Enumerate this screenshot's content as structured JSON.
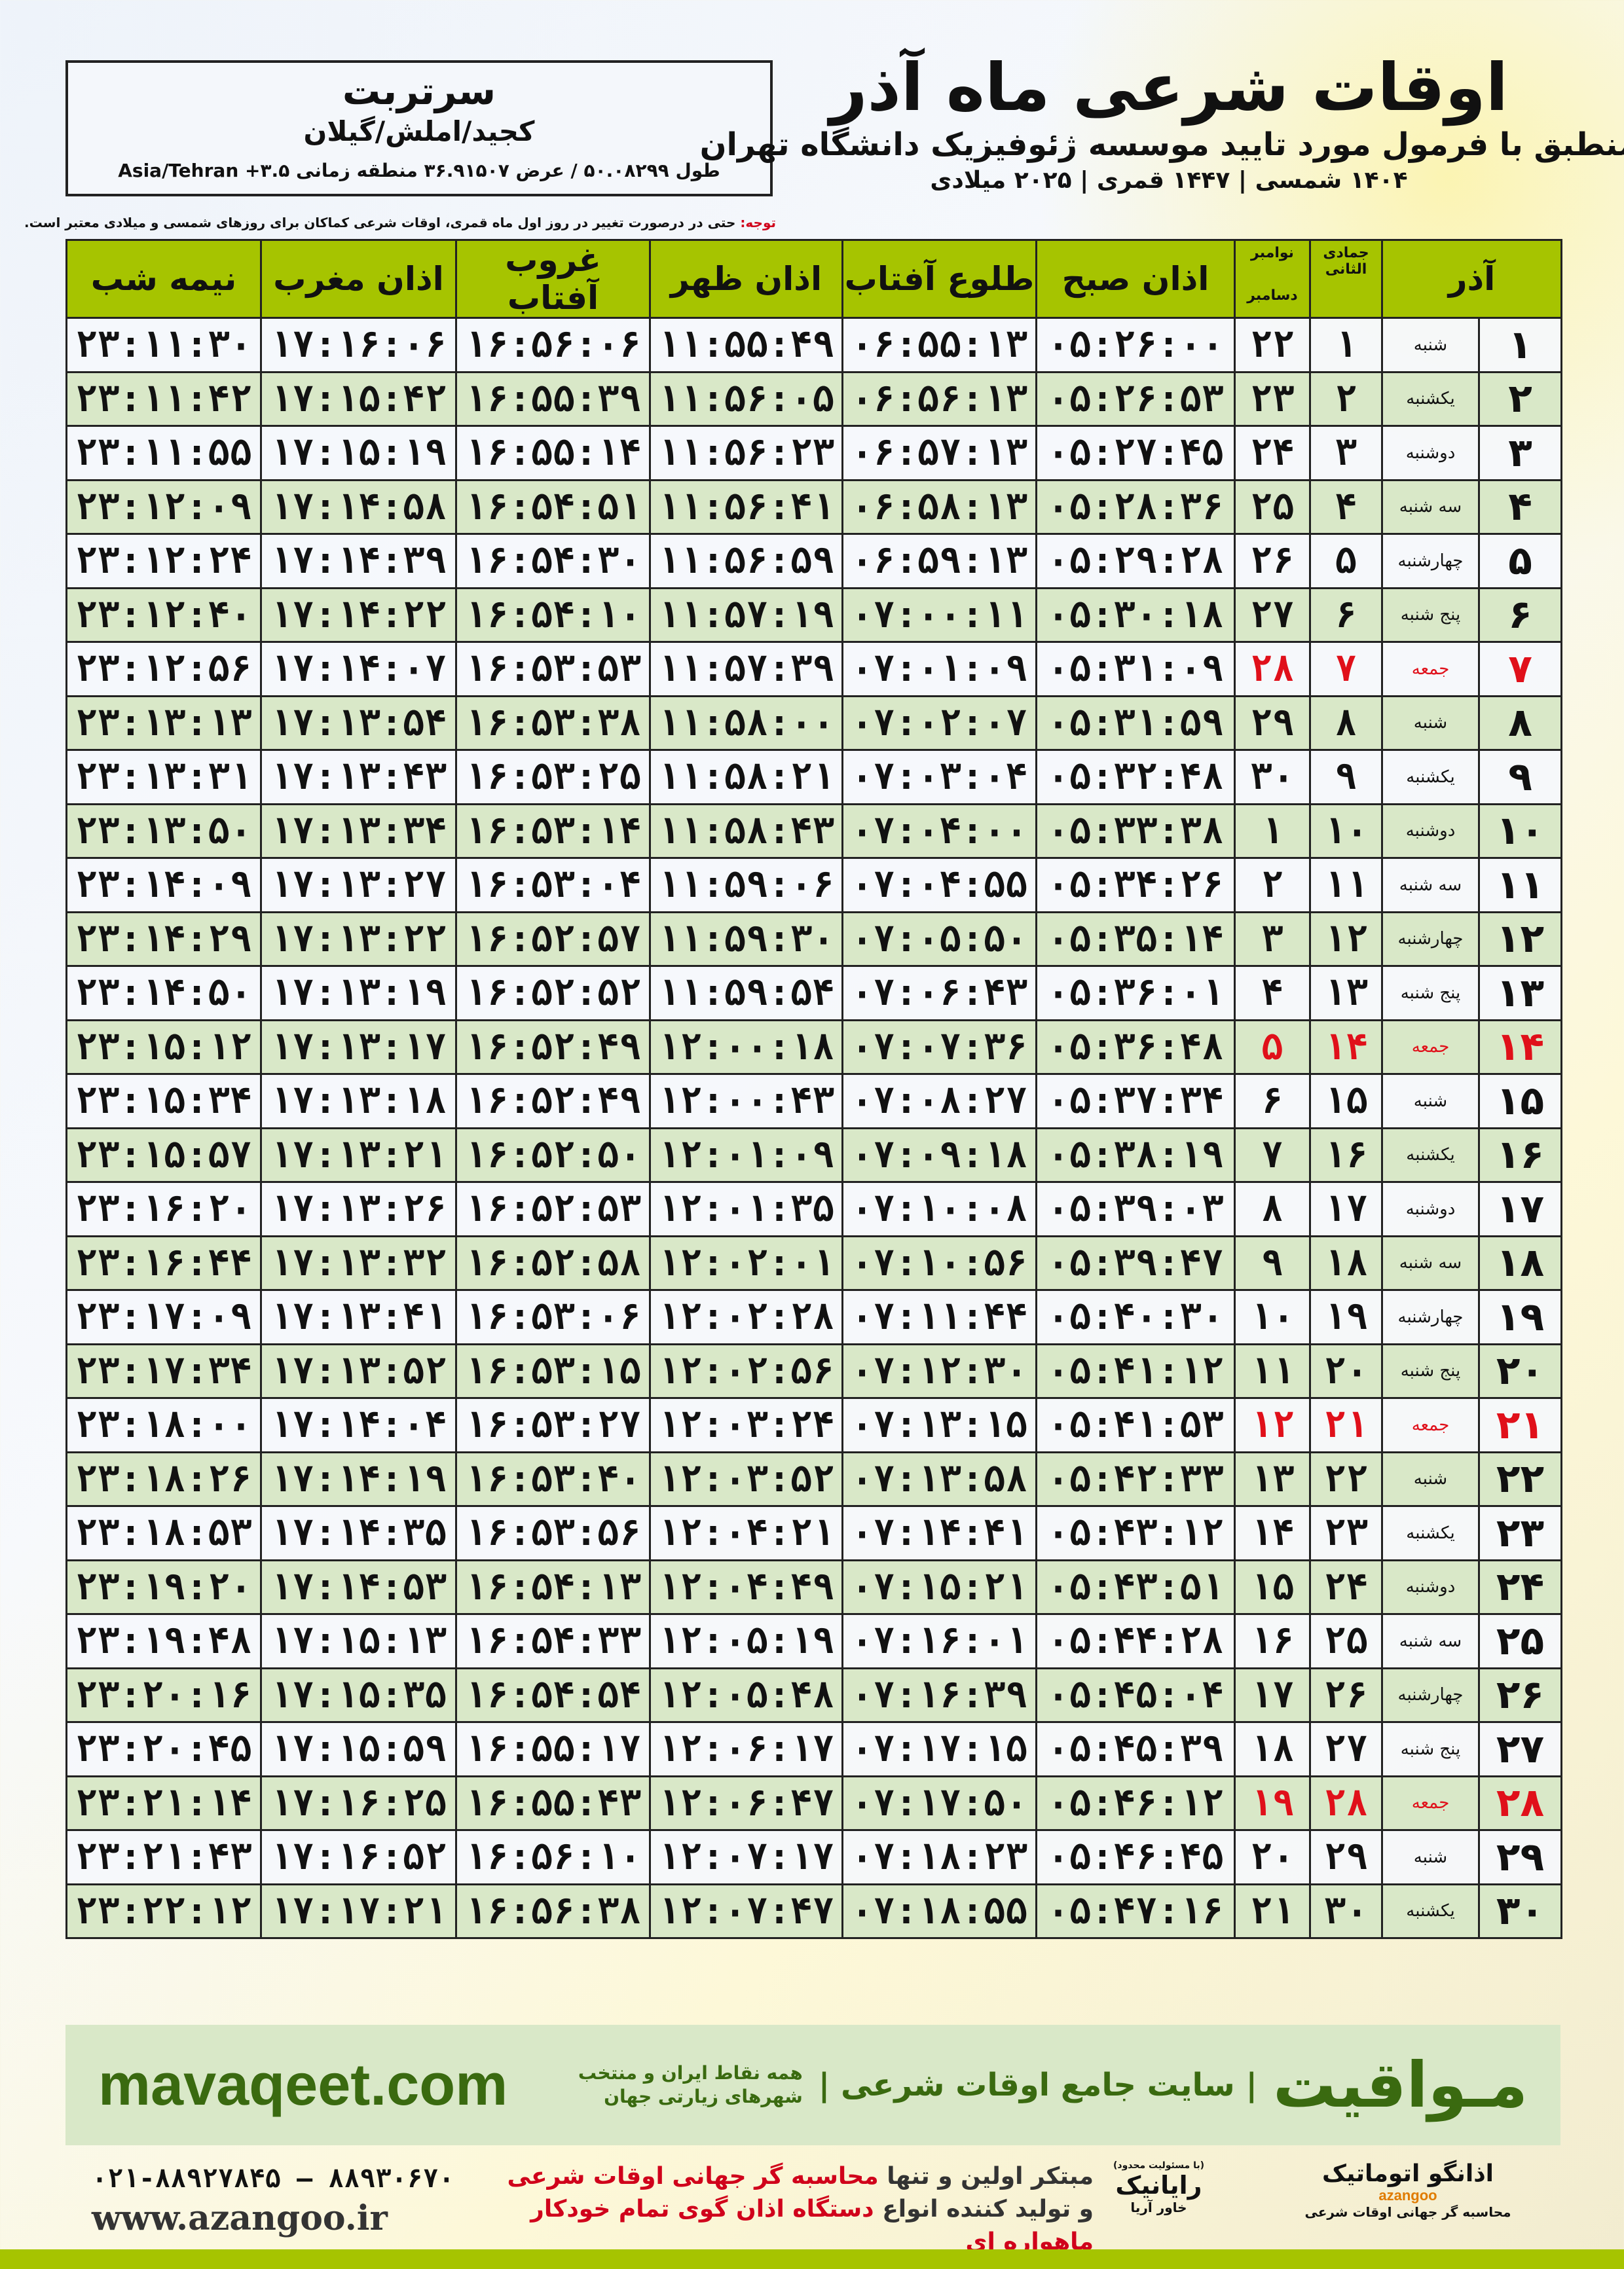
{
  "location": {
    "city": "سرتربت",
    "region": "کجید/املش/گیلان",
    "coords": "طول ۵۰.۰۸۲۹۹ / عرض ۳۶.۹۱۵۰۷ منطقه زمانی ۳.۵+ Asia/Tehran"
  },
  "header": {
    "title": "اوقات شرعی ماه آذر",
    "subtitle": "منطبق با فرمول مورد تایید موسسه ژئوفیزیک دانشگاه تهران",
    "dateline": "۱۴۰۴ شمسی | ۱۴۴۷ قمری | ۲۰۲۵ میلادی"
  },
  "notice": {
    "label": "توجه:",
    "text": " حتی در درصورت تغییر در روز اول ماه قمری، اوقات شرعی کماکان برای روزهای شمسی و میلادی معتبر است."
  },
  "colors": {
    "header_green": "#a6c400",
    "row_green": "#d9e8c8",
    "friday_red": "#e0101a",
    "brand_green": "#3a6a10"
  },
  "table": {
    "headers": {
      "day": "آذر",
      "jumada": "جمادی الثانی",
      "november": "نوامبر",
      "december": "دسامبر",
      "sobh": "اذان صبح",
      "tolu": "طلوع آفتاب",
      "zohr": "اذان ظهر",
      "ghorub": "غروب آفتاب",
      "maghreb": "اذان مغرب",
      "nimeh": "نیمه شب"
    },
    "rows": [
      [
        "۱",
        "شنبه",
        "۱",
        "۲۲",
        "۰۵:۲۶:۰۰",
        "۰۶:۵۵:۱۳",
        "۱۱:۵۵:۴۹",
        "۱۶:۵۶:۰۶",
        "۱۷:۱۶:۰۶",
        "۲۳:۱۱:۳۰"
      ],
      [
        "۲",
        "یکشنبه",
        "۲",
        "۲۳",
        "۰۵:۲۶:۵۳",
        "۰۶:۵۶:۱۳",
        "۱۱:۵۶:۰۵",
        "۱۶:۵۵:۳۹",
        "۱۷:۱۵:۴۲",
        "۲۳:۱۱:۴۲"
      ],
      [
        "۳",
        "دوشنبه",
        "۳",
        "۲۴",
        "۰۵:۲۷:۴۵",
        "۰۶:۵۷:۱۳",
        "۱۱:۵۶:۲۳",
        "۱۶:۵۵:۱۴",
        "۱۷:۱۵:۱۹",
        "۲۳:۱۱:۵۵"
      ],
      [
        "۴",
        "سه شنبه",
        "۴",
        "۲۵",
        "۰۵:۲۸:۳۶",
        "۰۶:۵۸:۱۳",
        "۱۱:۵۶:۴۱",
        "۱۶:۵۴:۵۱",
        "۱۷:۱۴:۵۸",
        "۲۳:۱۲:۰۹"
      ],
      [
        "۵",
        "چهارشنبه",
        "۵",
        "۲۶",
        "۰۵:۲۹:۲۸",
        "۰۶:۵۹:۱۳",
        "۱۱:۵۶:۵۹",
        "۱۶:۵۴:۳۰",
        "۱۷:۱۴:۳۹",
        "۲۳:۱۲:۲۴"
      ],
      [
        "۶",
        "پنج شنبه",
        "۶",
        "۲۷",
        "۰۵:۳۰:۱۸",
        "۰۷:۰۰:۱۱",
        "۱۱:۵۷:۱۹",
        "۱۶:۵۴:۱۰",
        "۱۷:۱۴:۲۲",
        "۲۳:۱۲:۴۰"
      ],
      [
        "۷",
        "جمعه",
        "۷",
        "۲۸",
        "۰۵:۳۱:۰۹",
        "۰۷:۰۱:۰۹",
        "۱۱:۵۷:۳۹",
        "۱۶:۵۳:۵۳",
        "۱۷:۱۴:۰۷",
        "۲۳:۱۲:۵۶"
      ],
      [
        "۸",
        "شنبه",
        "۸",
        "۲۹",
        "۰۵:۳۱:۵۹",
        "۰۷:۰۲:۰۷",
        "۱۱:۵۸:۰۰",
        "۱۶:۵۳:۳۸",
        "۱۷:۱۳:۵۴",
        "۲۳:۱۳:۱۳"
      ],
      [
        "۹",
        "یکشنبه",
        "۹",
        "۳۰",
        "۰۵:۳۲:۴۸",
        "۰۷:۰۳:۰۴",
        "۱۱:۵۸:۲۱",
        "۱۶:۵۳:۲۵",
        "۱۷:۱۳:۴۳",
        "۲۳:۱۳:۳۱"
      ],
      [
        "۱۰",
        "دوشنبه",
        "۱۰",
        "۱",
        "۰۵:۳۳:۳۸",
        "۰۷:۰۴:۰۰",
        "۱۱:۵۸:۴۳",
        "۱۶:۵۳:۱۴",
        "۱۷:۱۳:۳۴",
        "۲۳:۱۳:۵۰"
      ],
      [
        "۱۱",
        "سه شنبه",
        "۱۱",
        "۲",
        "۰۵:۳۴:۲۶",
        "۰۷:۰۴:۵۵",
        "۱۱:۵۹:۰۶",
        "۱۶:۵۳:۰۴",
        "۱۷:۱۳:۲۷",
        "۲۳:۱۴:۰۹"
      ],
      [
        "۱۲",
        "چهارشنبه",
        "۱۲",
        "۳",
        "۰۵:۳۵:۱۴",
        "۰۷:۰۵:۵۰",
        "۱۱:۵۹:۳۰",
        "۱۶:۵۲:۵۷",
        "۱۷:۱۳:۲۲",
        "۲۳:۱۴:۲۹"
      ],
      [
        "۱۳",
        "پنج شنبه",
        "۱۳",
        "۴",
        "۰۵:۳۶:۰۱",
        "۰۷:۰۶:۴۳",
        "۱۱:۵۹:۵۴",
        "۱۶:۵۲:۵۲",
        "۱۷:۱۳:۱۹",
        "۲۳:۱۴:۵۰"
      ],
      [
        "۱۴",
        "جمعه",
        "۱۴",
        "۵",
        "۰۵:۳۶:۴۸",
        "۰۷:۰۷:۳۶",
        "۱۲:۰۰:۱۸",
        "۱۶:۵۲:۴۹",
        "۱۷:۱۳:۱۷",
        "۲۳:۱۵:۱۲"
      ],
      [
        "۱۵",
        "شنبه",
        "۱۵",
        "۶",
        "۰۵:۳۷:۳۴",
        "۰۷:۰۸:۲۷",
        "۱۲:۰۰:۴۳",
        "۱۶:۵۲:۴۹",
        "۱۷:۱۳:۱۸",
        "۲۳:۱۵:۳۴"
      ],
      [
        "۱۶",
        "یکشنبه",
        "۱۶",
        "۷",
        "۰۵:۳۸:۱۹",
        "۰۷:۰۹:۱۸",
        "۱۲:۰۱:۰۹",
        "۱۶:۵۲:۵۰",
        "۱۷:۱۳:۲۱",
        "۲۳:۱۵:۵۷"
      ],
      [
        "۱۷",
        "دوشنبه",
        "۱۷",
        "۸",
        "۰۵:۳۹:۰۳",
        "۰۷:۱۰:۰۸",
        "۱۲:۰۱:۳۵",
        "۱۶:۵۲:۵۳",
        "۱۷:۱۳:۲۶",
        "۲۳:۱۶:۲۰"
      ],
      [
        "۱۸",
        "سه شنبه",
        "۱۸",
        "۹",
        "۰۵:۳۹:۴۷",
        "۰۷:۱۰:۵۶",
        "۱۲:۰۲:۰۱",
        "۱۶:۵۲:۵۸",
        "۱۷:۱۳:۳۲",
        "۲۳:۱۶:۴۴"
      ],
      [
        "۱۹",
        "چهارشنبه",
        "۱۹",
        "۱۰",
        "۰۵:۴۰:۳۰",
        "۰۷:۱۱:۴۴",
        "۱۲:۰۲:۲۸",
        "۱۶:۵۳:۰۶",
        "۱۷:۱۳:۴۱",
        "۲۳:۱۷:۰۹"
      ],
      [
        "۲۰",
        "پنج شنبه",
        "۲۰",
        "۱۱",
        "۰۵:۴۱:۱۲",
        "۰۷:۱۲:۳۰",
        "۱۲:۰۲:۵۶",
        "۱۶:۵۳:۱۵",
        "۱۷:۱۳:۵۲",
        "۲۳:۱۷:۳۴"
      ],
      [
        "۲۱",
        "جمعه",
        "۲۱",
        "۱۲",
        "۰۵:۴۱:۵۳",
        "۰۷:۱۳:۱۵",
        "۱۲:۰۳:۲۴",
        "۱۶:۵۳:۲۷",
        "۱۷:۱۴:۰۴",
        "۲۳:۱۸:۰۰"
      ],
      [
        "۲۲",
        "شنبه",
        "۲۲",
        "۱۳",
        "۰۵:۴۲:۳۳",
        "۰۷:۱۳:۵۸",
        "۱۲:۰۳:۵۲",
        "۱۶:۵۳:۴۰",
        "۱۷:۱۴:۱۹",
        "۲۳:۱۸:۲۶"
      ],
      [
        "۲۳",
        "یکشنبه",
        "۲۳",
        "۱۴",
        "۰۵:۴۳:۱۲",
        "۰۷:۱۴:۴۱",
        "۱۲:۰۴:۲۱",
        "۱۶:۵۳:۵۶",
        "۱۷:۱۴:۳۵",
        "۲۳:۱۸:۵۳"
      ],
      [
        "۲۴",
        "دوشنبه",
        "۲۴",
        "۱۵",
        "۰۵:۴۳:۵۱",
        "۰۷:۱۵:۲۱",
        "۱۲:۰۴:۴۹",
        "۱۶:۵۴:۱۳",
        "۱۷:۱۴:۵۳",
        "۲۳:۱۹:۲۰"
      ],
      [
        "۲۵",
        "سه شنبه",
        "۲۵",
        "۱۶",
        "۰۵:۴۴:۲۸",
        "۰۷:۱۶:۰۱",
        "۱۲:۰۵:۱۹",
        "۱۶:۵۴:۳۳",
        "۱۷:۱۵:۱۳",
        "۲۳:۱۹:۴۸"
      ],
      [
        "۲۶",
        "چهارشنبه",
        "۲۶",
        "۱۷",
        "۰۵:۴۵:۰۴",
        "۰۷:۱۶:۳۹",
        "۱۲:۰۵:۴۸",
        "۱۶:۵۴:۵۴",
        "۱۷:۱۵:۳۵",
        "۲۳:۲۰:۱۶"
      ],
      [
        "۲۷",
        "پنج شنبه",
        "۲۷",
        "۱۸",
        "۰۵:۴۵:۳۹",
        "۰۷:۱۷:۱۵",
        "۱۲:۰۶:۱۷",
        "۱۶:۵۵:۱۷",
        "۱۷:۱۵:۵۹",
        "۲۳:۲۰:۴۵"
      ],
      [
        "۲۸",
        "جمعه",
        "۲۸",
        "۱۹",
        "۰۵:۴۶:۱۲",
        "۰۷:۱۷:۵۰",
        "۱۲:۰۶:۴۷",
        "۱۶:۵۵:۴۳",
        "۱۷:۱۶:۲۵",
        "۲۳:۲۱:۱۴"
      ],
      [
        "۲۹",
        "شنبه",
        "۲۹",
        "۲۰",
        "۰۵:۴۶:۴۵",
        "۰۷:۱۸:۲۳",
        "۱۲:۰۷:۱۷",
        "۱۶:۵۶:۱۰",
        "۱۷:۱۶:۵۲",
        "۲۳:۲۱:۴۳"
      ],
      [
        "۳۰",
        "یکشنبه",
        "۳۰",
        "۲۱",
        "۰۵:۴۷:۱۶",
        "۰۷:۱۸:۵۵",
        "۱۲:۰۷:۴۷",
        "۱۶:۵۶:۳۸",
        "۱۷:۱۷:۲۱",
        "۲۳:۲۲:۱۲"
      ]
    ],
    "friday_label": "جمعه"
  },
  "promo": {
    "brand": "مـواقیت",
    "tagline": "| سایت جامع اوقات شرعی |",
    "sub": "همه نقاط ایران و منتخب شهرهای زیارتی جهان",
    "site": "mavaqeet.com"
  },
  "footer": {
    "phone": "۰۲۱-۸۸۹۲۷۸۴۵ – ۸۸۹۳۰۶۷۰",
    "web": "www.azangoo.ir",
    "slogan1a": "مبتکر اولین و تنها ",
    "slogan1b": "محاسبه گر جهانی اوقات شرعی",
    "slogan2a": "و تولید کننده انواع ",
    "slogan2b": "دستگاه اذان گوی تمام خودکار ماهواره ای",
    "logo_rayanik": "رایانیک",
    "logo_rayanik_sub": "خاور آریا",
    "logo_rayanik_note": "(با مسئولیت محدود)",
    "logo_azangoo": "اذانگو اتوماتیک",
    "logo_azangoo_en": "azangoo",
    "logo_azangoo_sub": "محاسبه گر جهانی اوقات شرعی"
  }
}
